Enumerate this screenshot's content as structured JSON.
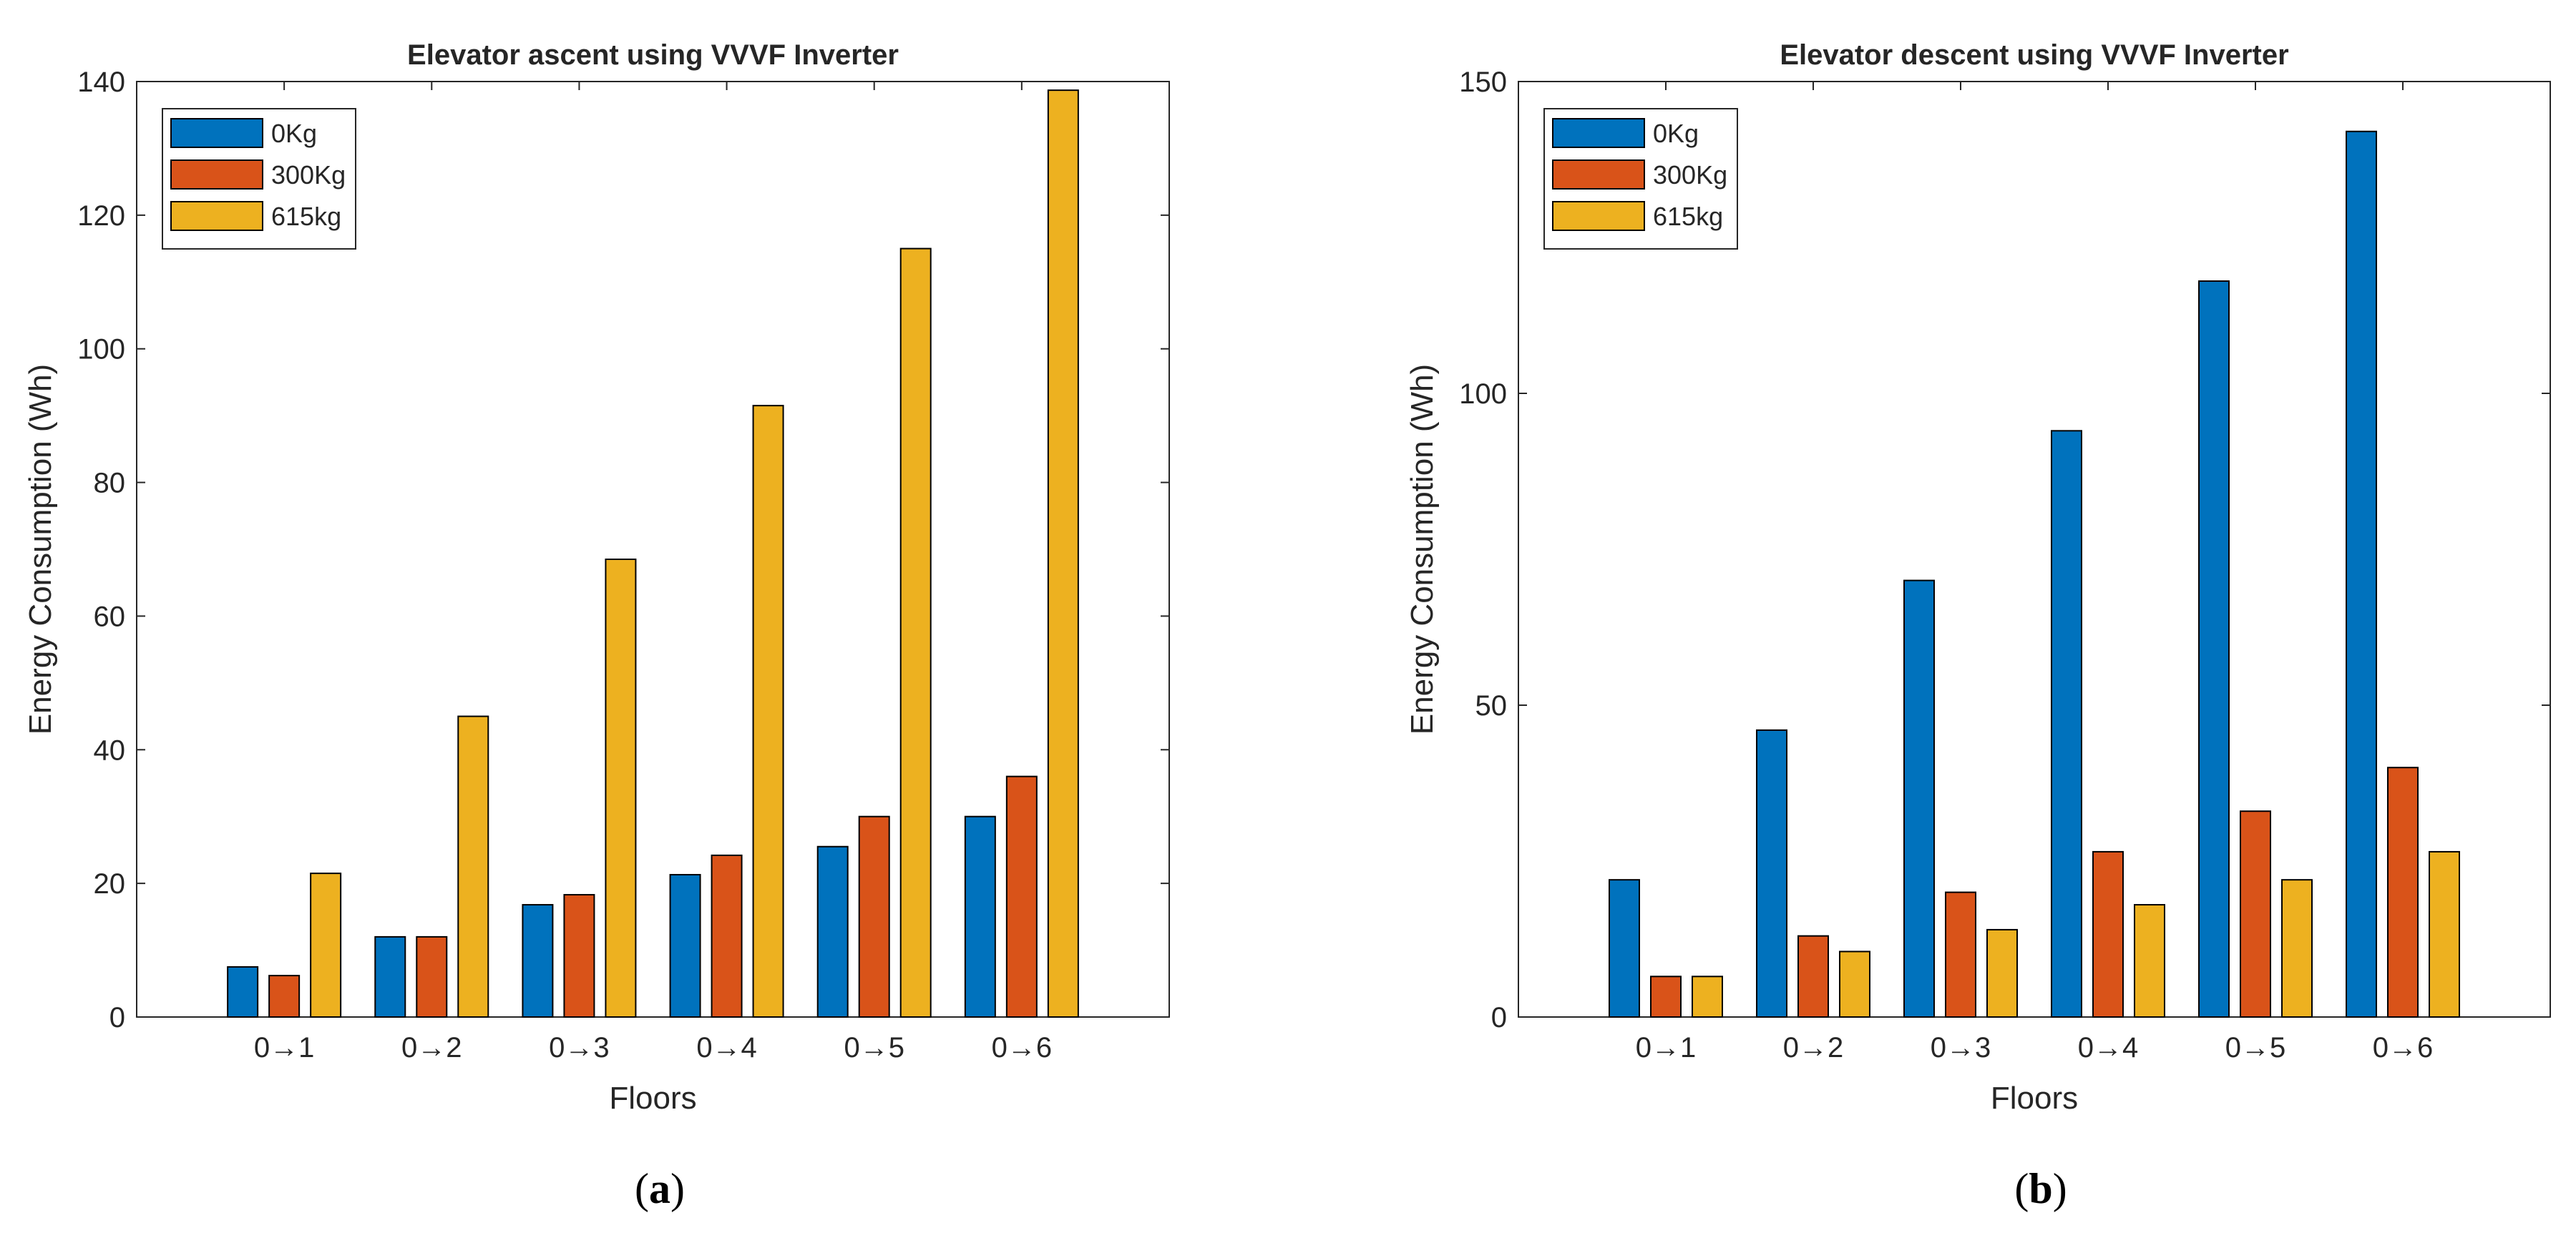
{
  "chart_data": [
    {
      "type": "bar",
      "caption_open": "(",
      "caption_letter": "a",
      "caption_close": ")",
      "title": "Elevator ascent using VVVF Inverter",
      "xlabel": "Floors",
      "ylabel": "Energy Consumption (Wh)",
      "ylim": [
        0,
        140
      ],
      "yticks": [
        0,
        20,
        40,
        60,
        80,
        100,
        120,
        140
      ],
      "categories": [
        "0→1",
        "0→2",
        "0→3",
        "0→4",
        "0→5",
        "0→6"
      ],
      "legend_position": "top-left",
      "series": [
        {
          "name": "0Kg",
          "color": "#0072BD",
          "values": [
            7.5,
            12,
            16.8,
            21.3,
            25.5,
            30
          ]
        },
        {
          "name": "300Kg",
          "color": "#D95319",
          "values": [
            6.2,
            12,
            18.3,
            24.2,
            30,
            36
          ]
        },
        {
          "name": "615kg",
          "color": "#EDB120",
          "values": [
            21.5,
            45,
            68.5,
            91.5,
            115,
            138.7
          ]
        }
      ]
    },
    {
      "type": "bar",
      "caption_open": "(",
      "caption_letter": "b",
      "caption_close": ")",
      "title": "Elevator descent using VVVF Inverter",
      "xlabel": "Floors",
      "ylabel": "Energy Consumption (Wh)",
      "ylim": [
        0,
        150
      ],
      "yticks": [
        0,
        50,
        100,
        150
      ],
      "categories": [
        "0→1",
        "0→2",
        "0→3",
        "0→4",
        "0→5",
        "0→6"
      ],
      "legend_position": "top-left",
      "series": [
        {
          "name": "0Kg",
          "color": "#0072BD",
          "values": [
            22,
            46,
            70,
            94,
            118,
            142
          ]
        },
        {
          "name": "300Kg",
          "color": "#D95319",
          "values": [
            6.5,
            13,
            20,
            26.5,
            33,
            40
          ]
        },
        {
          "name": "615kg",
          "color": "#EDB120",
          "values": [
            6.5,
            10.5,
            14,
            18,
            22,
            26.5
          ]
        }
      ]
    }
  ]
}
